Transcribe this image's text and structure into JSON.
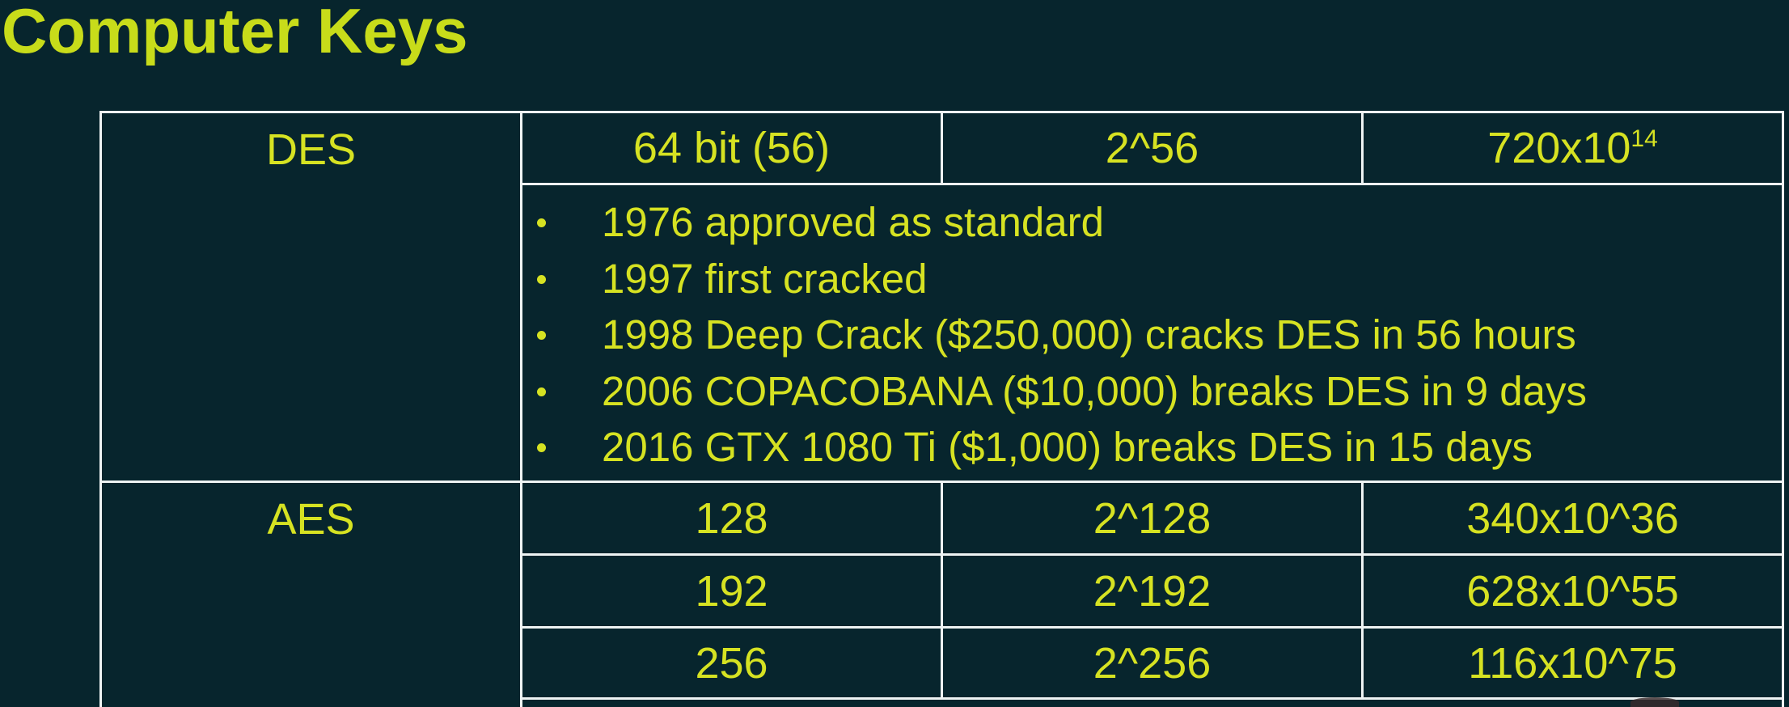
{
  "title": "Computer Keys",
  "des": {
    "name": "DES",
    "key_size": "64 bit (56)",
    "keyspace": "2^56",
    "combinations_base": "720x10",
    "combinations_exp": "14",
    "notes": [
      "1976 approved as standard",
      "1997 first cracked",
      "1998 Deep Crack ($250,000) cracks DES in 56 hours",
      "2006 COPACOBANA ($10,000) breaks DES in 9 days",
      "2016 GTX 1080 Ti ($1,000) breaks DES in 15 days"
    ]
  },
  "aes": {
    "name": "AES",
    "rows": [
      {
        "key_size": "128",
        "keyspace": "2^128",
        "combinations": "340x10^36"
      },
      {
        "key_size": "192",
        "keyspace": "2^192",
        "combinations": "628x10^55"
      },
      {
        "key_size": "256",
        "keyspace": "2^256",
        "combinations": "116x10^75"
      }
    ]
  },
  "colors": {
    "background": "#07252d",
    "text": "#d6e222",
    "grid": "#eef3f3"
  }
}
